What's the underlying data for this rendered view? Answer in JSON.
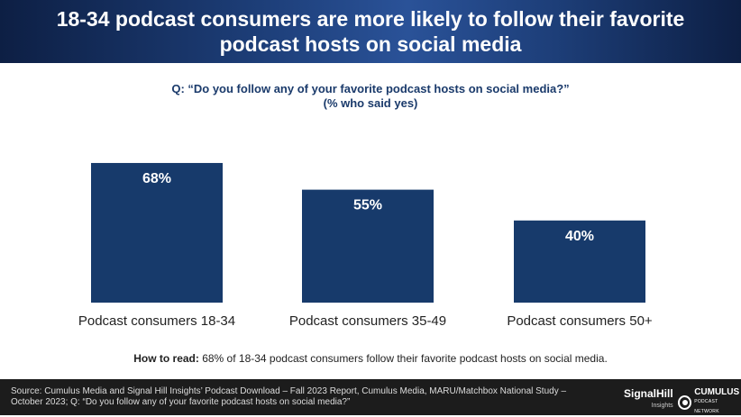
{
  "header": {
    "title": "18-34 podcast consumers are more likely to follow their favorite podcast hosts on social media"
  },
  "question": {
    "line1": "Q: “Do you follow any of your favorite podcast hosts on social media?”",
    "line2": "(% who said yes)"
  },
  "chart_data": {
    "type": "bar",
    "categories": [
      "Podcast consumers 18-34",
      "Podcast consumers 35-49",
      "Podcast consumers 50+"
    ],
    "values": [
      68,
      55,
      40
    ],
    "value_labels": [
      "68%",
      "55%",
      "40%"
    ],
    "title": "",
    "xlabel": "",
    "ylabel": "",
    "ylim": [
      0,
      100
    ],
    "grid": false,
    "bar_color": "#173a6b"
  },
  "how_to_read": {
    "label": "How to read:",
    "text": " 68% of 18-34 podcast consumers follow their favorite podcast hosts on social media."
  },
  "footer": {
    "source": "Source: Cumulus Media and Signal Hill Insights’ Podcast Download – Fall 2023 Report, Cumulus Media, MARU/Matchbox National Study – October 2023; Q: “Do you follow any of your favorite podcast hosts on social media?”",
    "logo_signal_main": "SignalHill",
    "logo_signal_sub": "Insights",
    "logo_cumulus_main": "CUMULUS",
    "logo_cumulus_sub": "PODCAST NETWORK"
  },
  "colors": {
    "accent": "#173a6b",
    "footer_bg": "#1c1c1c"
  }
}
